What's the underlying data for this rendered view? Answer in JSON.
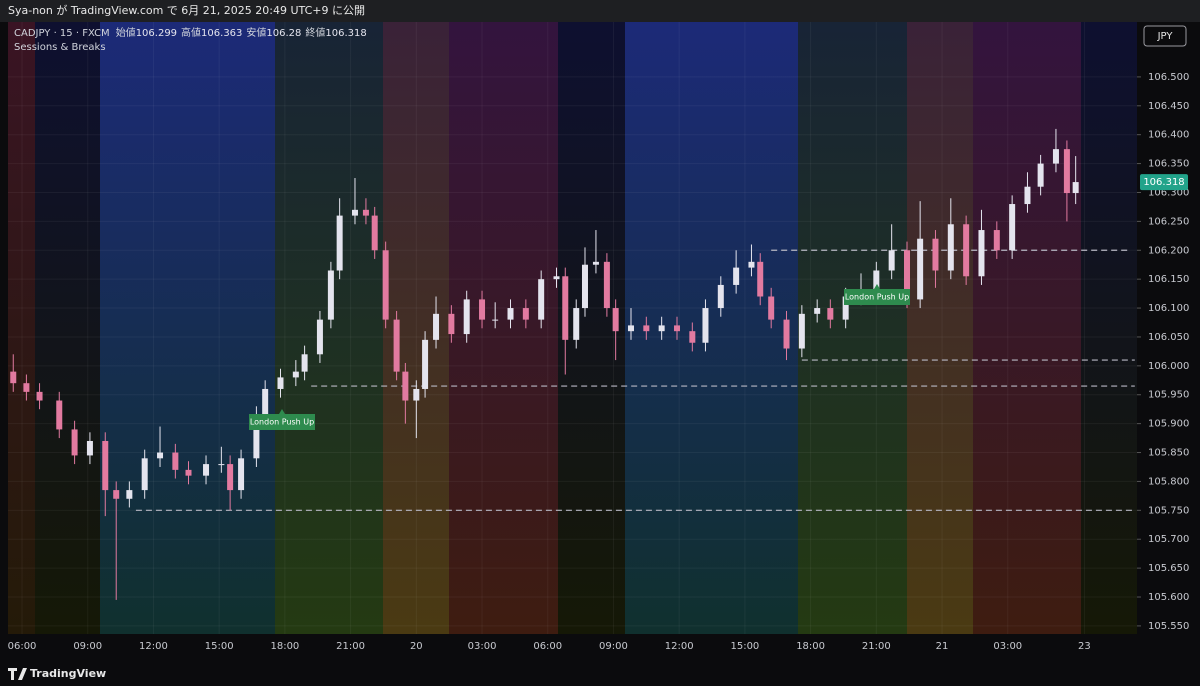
{
  "header": {
    "published": "Sya-non が TradingView.com で 6月 21, 2025 20:49 UTC+9 に公開"
  },
  "footer": {
    "brand": "TradingView"
  },
  "chart_data": {
    "type": "candlestick",
    "symbol": "CADJPY · 15 · FXCM",
    "indicator": "Sessions & Breaks",
    "currency": "JPY",
    "ohlc": [
      {
        "label": "始値",
        "value": 106.299
      },
      {
        "label": "高値",
        "value": 106.363
      },
      {
        "label": "安値",
        "value": 106.28
      },
      {
        "label": "終値",
        "value": 106.318
      }
    ],
    "last_price": 106.318,
    "last_price_color": "#22a38a",
    "up_color": "#e4e4ee",
    "down_color": "#e27aa0",
    "grid": true,
    "x": [
      -0.4,
      0.2,
      0.8,
      1.7,
      2.4,
      3.1,
      3.8,
      4.3,
      4.9,
      5.6,
      6.3,
      7.0,
      7.6,
      8.4,
      9.1,
      9.5,
      10.0,
      10.7,
      11.1,
      11.8,
      12.5,
      12.9,
      13.6,
      14.1,
      14.5,
      15.2,
      15.7,
      16.1,
      16.6,
      17.1,
      17.5,
      18.0,
      18.4,
      18.9,
      19.6,
      20.3,
      21.0,
      21.6,
      22.3,
      23.0,
      23.7,
      24.4,
      24.8,
      25.3,
      25.7,
      26.2,
      26.7,
      27.1,
      27.8,
      28.5,
      29.2,
      29.9,
      30.6,
      31.2,
      31.9,
      32.6,
      33.3,
      33.7,
      34.2,
      34.9,
      35.6,
      36.3,
      36.9,
      37.6,
      38.3,
      39.0,
      39.7,
      40.4,
      41.0,
      41.7,
      42.4,
      43.1,
      43.8,
      44.5,
      45.2,
      45.9,
      46.5,
      47.2,
      47.7,
      48.1
    ],
    "open": [
      105.99,
      105.97,
      105.955,
      105.94,
      105.89,
      105.845,
      105.87,
      105.785,
      105.77,
      105.785,
      105.84,
      105.85,
      105.82,
      105.81,
      105.83,
      105.83,
      105.785,
      105.84,
      105.915,
      105.96,
      105.98,
      105.99,
      106.02,
      106.08,
      106.165,
      106.26,
      106.27,
      106.26,
      106.2,
      106.08,
      105.99,
      105.94,
      105.96,
      106.045,
      106.09,
      106.055,
      106.115,
      106.08,
      106.08,
      106.1,
      106.08,
      106.15,
      106.155,
      106.045,
      106.1,
      106.175,
      106.18,
      106.1,
      106.06,
      106.07,
      106.06,
      106.07,
      106.06,
      106.04,
      106.1,
      106.14,
      106.17,
      106.18,
      106.12,
      106.08,
      106.03,
      106.09,
      106.1,
      106.08,
      106.12,
      106.13,
      106.165,
      106.2,
      106.115,
      106.22,
      106.165,
      106.245,
      106.155,
      106.235,
      106.2,
      106.28,
      106.31,
      106.35,
      106.375,
      106.299
    ],
    "high": [
      106.02,
      105.985,
      105.97,
      105.955,
      105.905,
      105.885,
      105.885,
      105.8,
      105.8,
      105.855,
      105.895,
      105.865,
      105.835,
      105.845,
      105.86,
      105.845,
      105.855,
      105.93,
      105.975,
      105.995,
      106.01,
      106.035,
      106.095,
      106.18,
      106.29,
      106.325,
      106.29,
      106.275,
      106.215,
      106.095,
      106.005,
      105.975,
      106.06,
      106.12,
      106.105,
      106.13,
      106.13,
      106.11,
      106.115,
      106.115,
      106.165,
      106.17,
      106.17,
      106.115,
      106.205,
      106.235,
      106.195,
      106.115,
      106.1,
      106.085,
      106.085,
      106.085,
      106.075,
      106.115,
      106.155,
      106.2,
      106.21,
      106.195,
      106.135,
      106.095,
      106.105,
      106.115,
      106.115,
      106.135,
      106.16,
      106.18,
      106.245,
      106.215,
      106.285,
      106.235,
      106.29,
      106.26,
      106.27,
      106.25,
      106.295,
      106.335,
      106.365,
      106.41,
      106.39,
      106.363
    ],
    "low": [
      105.955,
      105.94,
      105.925,
      105.875,
      105.83,
      105.83,
      105.74,
      105.595,
      105.755,
      105.77,
      105.825,
      105.805,
      105.795,
      105.795,
      105.815,
      105.75,
      105.77,
      105.825,
      105.9,
      105.945,
      105.965,
      105.975,
      106.005,
      106.065,
      106.15,
      106.245,
      106.245,
      106.185,
      106.065,
      105.975,
      105.9,
      105.875,
      105.945,
      106.03,
      106.04,
      106.04,
      106.065,
      106.065,
      106.065,
      106.065,
      106.065,
      106.135,
      105.985,
      106.03,
      106.085,
      106.16,
      106.085,
      106.01,
      106.045,
      106.045,
      106.045,
      106.045,
      106.025,
      106.025,
      106.085,
      106.125,
      106.155,
      106.105,
      106.065,
      106.01,
      106.015,
      106.075,
      106.065,
      106.065,
      106.105,
      106.115,
      106.15,
      106.1,
      106.1,
      106.135,
      106.15,
      106.14,
      106.14,
      106.185,
      106.185,
      106.265,
      106.295,
      106.335,
      106.25,
      106.28
    ],
    "close": [
      105.97,
      105.955,
      105.94,
      105.89,
      105.845,
      105.87,
      105.785,
      105.77,
      105.785,
      105.84,
      105.85,
      105.82,
      105.81,
      105.83,
      105.83,
      105.785,
      105.84,
      105.915,
      105.96,
      105.98,
      105.99,
      106.02,
      106.08,
      106.165,
      106.26,
      106.27,
      106.26,
      106.2,
      106.08,
      105.99,
      105.94,
      105.96,
      106.045,
      106.09,
      106.055,
      106.115,
      106.08,
      106.08,
      106.1,
      106.08,
      106.15,
      106.155,
      106.045,
      106.1,
      106.175,
      106.18,
      106.1,
      106.06,
      106.07,
      106.06,
      106.07,
      106.06,
      106.04,
      106.1,
      106.14,
      106.17,
      106.18,
      106.12,
      106.08,
      106.03,
      106.09,
      106.1,
      106.08,
      106.12,
      106.13,
      106.165,
      106.2,
      106.115,
      106.22,
      106.165,
      106.245,
      106.155,
      106.235,
      106.2,
      106.28,
      106.31,
      106.35,
      106.375,
      106.299,
      106.318
    ],
    "levels": [
      {
        "value": 106.2,
        "x0": 34.2,
        "x1": 50.5
      },
      {
        "value": 106.01,
        "x0": 35.6,
        "x1": 50.8
      },
      {
        "value": 105.965,
        "x0": 13.2,
        "x1": 50.8
      },
      {
        "value": 105.75,
        "x0": 5.2,
        "x1": 50.8
      }
    ],
    "level_color": "#b8b8c4",
    "annotations": [
      "London Push Up",
      "London Push Up"
    ],
    "annotation_color": "#2e8b4e",
    "xlim": [
      -0.64,
      50.9
    ],
    "xticks": [
      {
        "value": 0,
        "label": "06:00"
      },
      {
        "value": 3,
        "label": "09:00"
      },
      {
        "value": 6,
        "label": "12:00"
      },
      {
        "value": 9,
        "label": "15:00"
      },
      {
        "value": 12,
        "label": "18:00"
      },
      {
        "value": 15,
        "label": "21:00"
      },
      {
        "value": 18,
        "label": "20"
      },
      {
        "value": 21,
        "label": "03:00"
      },
      {
        "value": 24,
        "label": "06:00"
      },
      {
        "value": 27,
        "label": "09:00"
      },
      {
        "value": 30,
        "label": "12:00"
      },
      {
        "value": 33,
        "label": "15:00"
      },
      {
        "value": 36,
        "label": "18:00"
      },
      {
        "value": 39,
        "label": "21:00"
      },
      {
        "value": 42,
        "label": "21"
      },
      {
        "value": 45,
        "label": "03:00"
      },
      {
        "value": 48.5,
        "label": "23"
      }
    ],
    "ylim": [
      105.536,
      106.595
    ],
    "yticks": [
      {
        "value": 106.5,
        "label": "106.500"
      },
      {
        "value": 106.45,
        "label": "106.450"
      },
      {
        "value": 106.4,
        "label": "106.400"
      },
      {
        "value": 106.35,
        "label": "106.350"
      },
      {
        "value": 106.3,
        "label": "106.300"
      },
      {
        "value": 106.25,
        "label": "106.250"
      },
      {
        "value": 106.2,
        "label": "106.200"
      },
      {
        "value": 106.15,
        "label": "106.150"
      },
      {
        "value": 106.1,
        "label": "106.100"
      },
      {
        "value": 106.05,
        "label": "106.050"
      },
      {
        "value": 106.0,
        "label": "106.000"
      },
      {
        "value": 105.95,
        "label": "105.950"
      },
      {
        "value": 105.9,
        "label": "105.900"
      },
      {
        "value": 105.85,
        "label": "105.850"
      },
      {
        "value": 105.8,
        "label": "105.800"
      },
      {
        "value": 105.75,
        "label": "105.750"
      },
      {
        "value": 105.7,
        "label": "105.700"
      },
      {
        "value": 105.65,
        "label": "105.650"
      },
      {
        "value": 105.6,
        "label": "105.600"
      },
      {
        "value": 105.55,
        "label": "105.550"
      }
    ]
  }
}
